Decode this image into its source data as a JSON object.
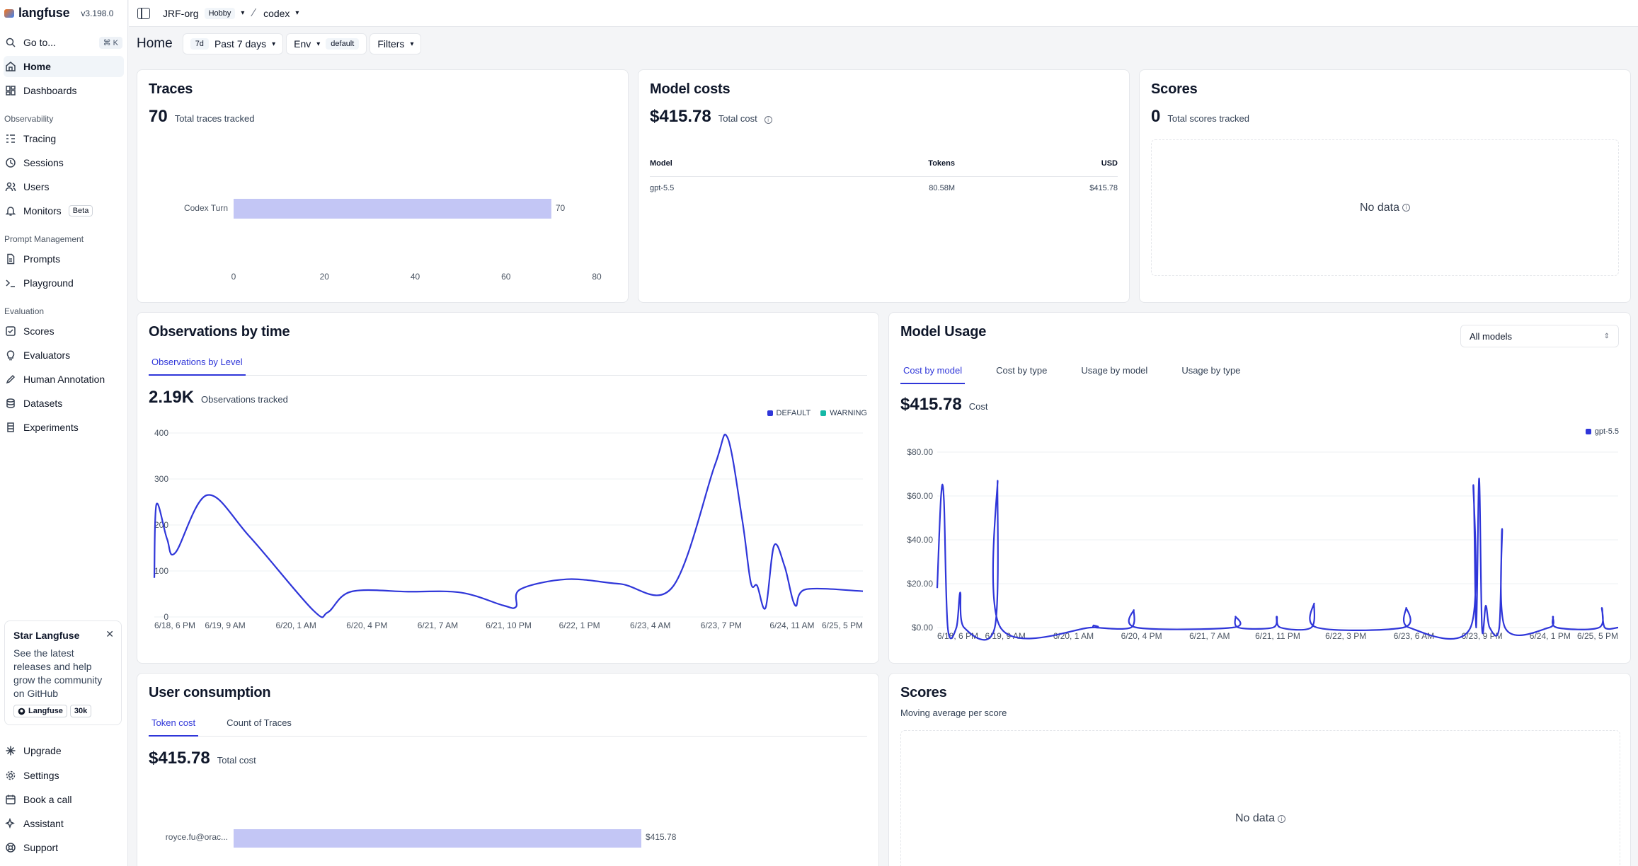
{
  "app": {
    "name": "langfuse",
    "version": "v3.198.0"
  },
  "sidebar": {
    "goto": {
      "label": "Go to...",
      "shortcut": "⌘ K"
    },
    "top": [
      {
        "label": "Home",
        "icon": "home-icon",
        "active": true
      },
      {
        "label": "Dashboards",
        "icon": "dashboard-icon"
      }
    ],
    "groups": [
      {
        "title": "Observability",
        "items": [
          {
            "label": "Tracing",
            "icon": "list-tree-icon"
          },
          {
            "label": "Sessions",
            "icon": "clock-icon"
          },
          {
            "label": "Users",
            "icon": "users-icon"
          },
          {
            "label": "Monitors",
            "icon": "bell-icon",
            "badge": "Beta"
          }
        ]
      },
      {
        "title": "Prompt Management",
        "items": [
          {
            "label": "Prompts",
            "icon": "file-text-icon"
          },
          {
            "label": "Playground",
            "icon": "terminal-icon"
          }
        ]
      },
      {
        "title": "Evaluation",
        "items": [
          {
            "label": "Scores",
            "icon": "square-check-icon"
          },
          {
            "label": "Evaluators",
            "icon": "lightbulb-icon"
          },
          {
            "label": "Human Annotation",
            "icon": "pencil-icon"
          },
          {
            "label": "Datasets",
            "icon": "database-icon"
          },
          {
            "label": "Experiments",
            "icon": "flask-icon"
          }
        ]
      }
    ],
    "star": {
      "title": "Star Langfuse",
      "text": "See the latest releases and help grow the community on GitHub",
      "repo": "Langfuse",
      "stars": "30k"
    },
    "bottom": [
      {
        "label": "Upgrade",
        "icon": "sparkle-icon"
      },
      {
        "label": "Settings",
        "icon": "gear-icon"
      },
      {
        "label": "Book a call",
        "icon": "calendar-icon"
      },
      {
        "label": "Assistant",
        "icon": "sparkles-icon"
      },
      {
        "label": "Support",
        "icon": "lifebuoy-icon"
      }
    ]
  },
  "topbar": {
    "org": "JRF-org",
    "plan": "Hobby",
    "project": "codex"
  },
  "toolbar": {
    "title": "Home",
    "range_short": "7d",
    "range_label": "Past 7 days",
    "env_label": "Env",
    "env_value": "default",
    "filters_label": "Filters"
  },
  "traces": {
    "title": "Traces",
    "total": "70",
    "total_label": "Total traces tracked",
    "chart_data": {
      "type": "bar",
      "orientation": "horizontal",
      "categories": [
        "Codex Turn"
      ],
      "values": [
        70
      ],
      "value_labels": [
        "70"
      ],
      "xticks": [
        "0",
        "20",
        "40",
        "60",
        "80"
      ],
      "xlim": [
        0,
        80
      ]
    }
  },
  "model_costs": {
    "title": "Model costs",
    "total": "$415.78",
    "total_label": "Total cost",
    "columns": [
      "Model",
      "Tokens",
      "USD"
    ],
    "rows": [
      [
        "gpt-5.5",
        "80.58M",
        "$415.78"
      ]
    ]
  },
  "scores_top": {
    "title": "Scores",
    "total": "0",
    "total_label": "Total scores tracked",
    "empty": "No data"
  },
  "observations": {
    "title": "Observations by time",
    "tab": "Observations by Level",
    "total": "2.19K",
    "total_label": "Observations tracked",
    "chart_data": {
      "type": "line",
      "series": [
        {
          "name": "DEFAULT",
          "color": "#2f36d9",
          "points": [
            [
              0,
              85
            ],
            [
              0.1,
              245
            ],
            [
              0.6,
              170
            ],
            [
              1.0,
              140
            ],
            [
              2.5,
              265
            ],
            [
              4.5,
              175
            ],
            [
              7.5,
              15
            ],
            [
              8.2,
              10
            ],
            [
              9.3,
              55
            ],
            [
              12.0,
              55
            ],
            [
              14.5,
              53
            ],
            [
              16.5,
              25
            ],
            [
              17.1,
              22
            ],
            [
              17.3,
              60
            ],
            [
              19.5,
              82
            ],
            [
              22.0,
              72
            ],
            [
              24.5,
              65
            ],
            [
              26.5,
              330
            ],
            [
              27.1,
              390
            ],
            [
              27.8,
              210
            ],
            [
              28.2,
              75
            ],
            [
              28.5,
              68
            ],
            [
              28.9,
              20
            ],
            [
              29.3,
              155
            ],
            [
              29.8,
              110
            ],
            [
              30.3,
              25
            ],
            [
              30.8,
              60
            ],
            [
              33.5,
              56
            ]
          ]
        },
        {
          "name": "WARNING",
          "color": "#14b8a6",
          "points": []
        }
      ],
      "ylim": [
        0,
        400
      ],
      "yticks": [
        "0",
        "100",
        "200",
        "300",
        "400"
      ],
      "xlim": [
        0,
        33.5
      ],
      "xticks": [
        "6/18, 6 PM",
        "6/19, 9 AM",
        "6/20, 1 AM",
        "6/20, 4 PM",
        "6/21, 7 AM",
        "6/21, 10 PM",
        "6/22, 1 PM",
        "6/23, 4 AM",
        "6/23, 7 PM",
        "6/24, 11 AM",
        "6/25, 5 PM"
      ],
      "xtick_pos": [
        0,
        3.8,
        7.5,
        11.2,
        15.0,
        18.8,
        22.5,
        26.2,
        30.0,
        33.8,
        40.5
      ]
    }
  },
  "model_usage": {
    "title": "Model Usage",
    "select": "All models",
    "tabs": [
      "Cost by model",
      "Cost by type",
      "Usage by model",
      "Usage by type"
    ],
    "total": "$415.78",
    "total_label": "Cost",
    "chart_data": {
      "type": "line",
      "series": [
        {
          "name": "gpt-5.5",
          "color": "#2f36d9",
          "points": [
            [
              0,
              18
            ],
            [
              0.2,
              60
            ],
            [
              0.35,
              58
            ],
            [
              0.55,
              0
            ],
            [
              1.0,
              0
            ],
            [
              1.2,
              16
            ],
            [
              1.4,
              0
            ],
            [
              3.0,
              0
            ],
            [
              3.15,
              67
            ],
            [
              3.3,
              0
            ],
            [
              8.0,
              0
            ],
            [
              8.15,
              1
            ],
            [
              8.3,
              0
            ],
            [
              10.1,
              0
            ],
            [
              10.25,
              8
            ],
            [
              10.4,
              0
            ],
            [
              15.4,
              0
            ],
            [
              15.55,
              5
            ],
            [
              15.7,
              0
            ],
            [
              17.5,
              0
            ],
            [
              17.7,
              5
            ],
            [
              17.9,
              0
            ],
            [
              19.5,
              0
            ],
            [
              19.65,
              11
            ],
            [
              19.8,
              0
            ],
            [
              24.3,
              0
            ],
            [
              24.45,
              9
            ],
            [
              24.6,
              0
            ],
            [
              27.8,
              0
            ],
            [
              27.95,
              65
            ],
            [
              28.1,
              0
            ],
            [
              28.25,
              68
            ],
            [
              28.4,
              0
            ],
            [
              28.6,
              10
            ],
            [
              28.8,
              0
            ],
            [
              29.3,
              0
            ],
            [
              29.45,
              45
            ],
            [
              29.6,
              0
            ],
            [
              31.9,
              0
            ],
            [
              32.1,
              5
            ],
            [
              32.3,
              0
            ],
            [
              34.5,
              0
            ],
            [
              34.65,
              9
            ],
            [
              34.8,
              0
            ],
            [
              35.5,
              0
            ]
          ]
        }
      ],
      "ylim": [
        0,
        80
      ],
      "yticks": [
        "$0.00",
        "$20.00",
        "$40.00",
        "$60.00",
        "$80.00"
      ],
      "xlim": [
        0,
        35.5
      ],
      "xticks": [
        "6/18, 6 PM",
        "6/19, 9 AM",
        "6/20, 1 AM",
        "6/20, 4 PM",
        "6/21, 7 AM",
        "6/21, 11 PM",
        "6/22, 3 PM",
        "6/23, 6 AM",
        "6/23, 9 PM",
        "6/24, 1 PM",
        "6/25, 5 PM"
      ],
      "xtick_pos": [
        0,
        3.0,
        6.3,
        9.7,
        12.9,
        16.3,
        19.5,
        22.8,
        26.1,
        29.4,
        35.5
      ]
    }
  },
  "user_consumption": {
    "title": "User consumption",
    "tabs": [
      "Token cost",
      "Count of Traces"
    ],
    "total": "$415.78",
    "total_label": "Total cost",
    "chart_data": {
      "type": "bar",
      "orientation": "horizontal",
      "categories": [
        "royce.fu@orac..."
      ],
      "values": [
        415.78
      ],
      "value_labels": [
        "$415.78"
      ]
    }
  },
  "scores_bottom": {
    "title": "Scores",
    "subtitle": "Moving average per score",
    "empty": "No data"
  }
}
